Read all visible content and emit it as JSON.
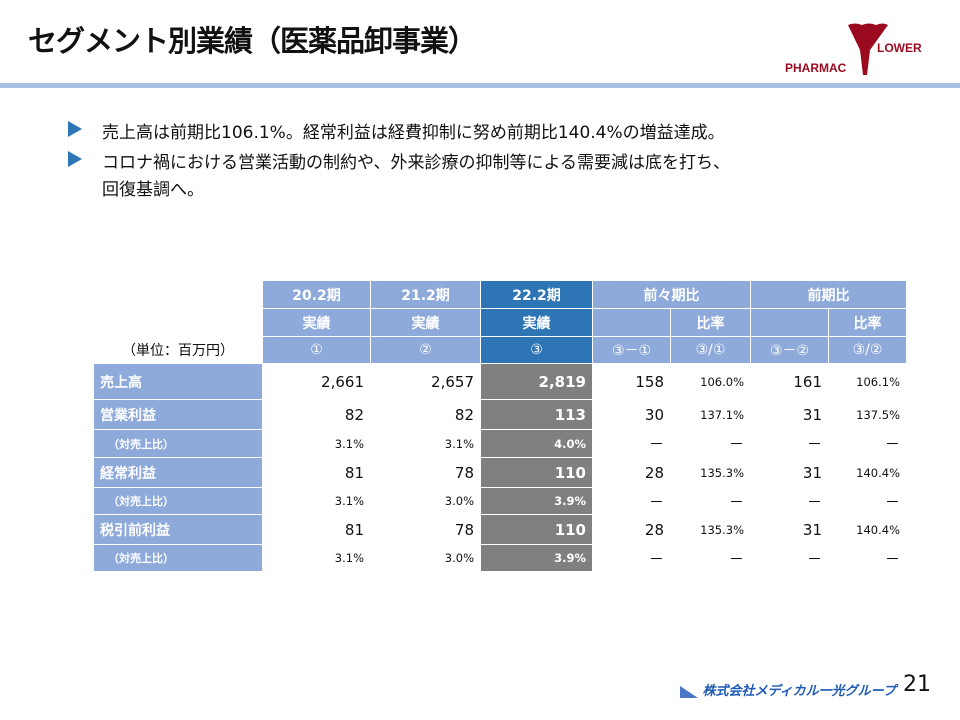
{
  "title": "セグメント別業績（医薬品卸事業）",
  "logo": {
    "left": "PHARMAC",
    "right": "LOWER",
    "color": "#9b0a1e"
  },
  "bullets": [
    "売上高は前期比106.1%。経常利益は経費抑制に努め前期比140.4%の増益達成。",
    "コロナ禍における営業活動の制約や、外来診療の抑制等による需要減は底を打ち、",
    "回復基調へ。"
  ],
  "table": {
    "unit": "（単位：百万円）",
    "h1": [
      "20.2期",
      "21.2期",
      "22.2期",
      "前々期比",
      "前期比"
    ],
    "h2": [
      "実績",
      "実績",
      "実績",
      "比率",
      "比率"
    ],
    "h3": [
      "①",
      "②",
      "③",
      "③－①",
      "③/①",
      "③－②",
      "③/②"
    ],
    "rows": [
      {
        "label": "売上高",
        "values": [
          "2,661",
          "2,657",
          "2,819",
          "158",
          "106.0%",
          "161",
          "106.1%"
        ]
      },
      {
        "label": "営業利益",
        "values": [
          "82",
          "82",
          "113",
          "30",
          "137.1%",
          "31",
          "137.5%"
        ]
      },
      {
        "label": "（対売上比）",
        "values": [
          "3.1%",
          "3.1%",
          "4.0%",
          "－",
          "－",
          "－",
          "－"
        ]
      },
      {
        "label": "経常利益",
        "values": [
          "81",
          "78",
          "110",
          "28",
          "135.3%",
          "31",
          "140.4%"
        ]
      },
      {
        "label": "（対売上比）",
        "values": [
          "3.1%",
          "3.0%",
          "3.9%",
          "－",
          "－",
          "－",
          "－"
        ]
      },
      {
        "label": "税引前利益",
        "values": [
          "81",
          "78",
          "110",
          "28",
          "135.3%",
          "31",
          "140.4%"
        ]
      },
      {
        "label": "（対売上比）",
        "values": [
          "3.1%",
          "3.0%",
          "3.9%",
          "－",
          "－",
          "－",
          "－"
        ]
      }
    ]
  },
  "footer": {
    "company": "株式会社メディカル一光グループ",
    "page": "21"
  }
}
